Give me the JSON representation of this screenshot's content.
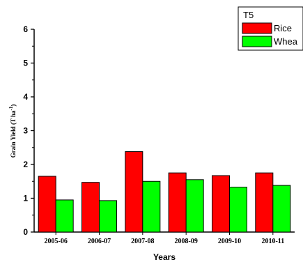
{
  "chart_data": {
    "type": "bar",
    "categories": [
      "2005-06",
      "2006-07",
      "2007-08",
      "2008-09",
      "2009-10",
      "2010-11"
    ],
    "series": [
      {
        "name": "Rice",
        "color": "#ff0000",
        "values": [
          1.65,
          1.47,
          2.38,
          1.75,
          1.67,
          1.75
        ]
      },
      {
        "name": "Whea",
        "color": "#00ff00",
        "values": [
          0.95,
          0.93,
          1.5,
          1.55,
          1.33,
          1.38
        ]
      }
    ],
    "legend_title": "T5",
    "xlabel": "Years",
    "ylabel": "Grain Yield (T ha",
    "ylabel_superscript": "-1",
    "ylabel_suffix": ")",
    "ylim": [
      0,
      6
    ],
    "yticks": [
      0,
      1,
      2,
      3,
      4,
      5,
      6
    ],
    "grid": false,
    "legend_position": "top-right"
  }
}
